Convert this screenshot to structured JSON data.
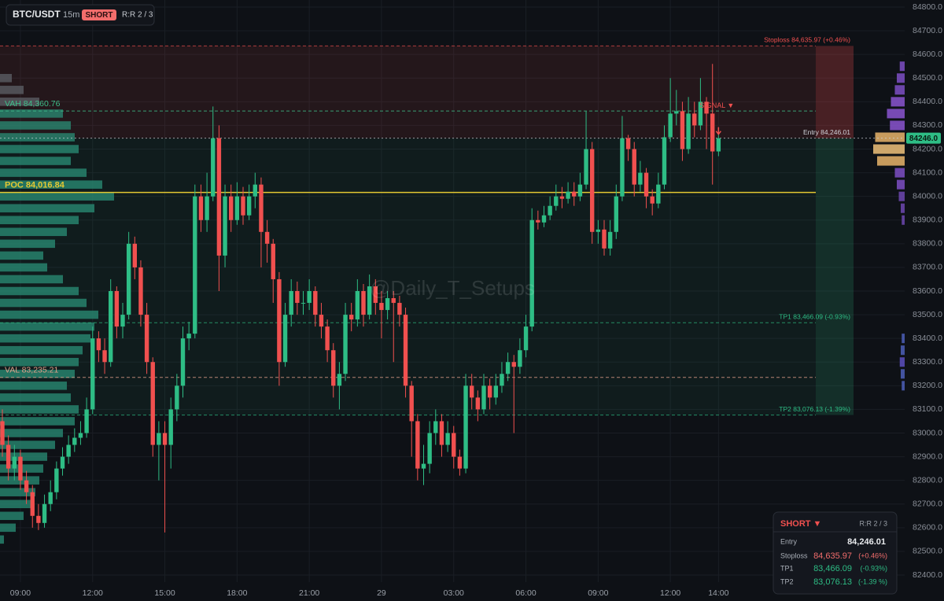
{
  "header": {
    "symbol": "BTC/USDT",
    "interval": "15m",
    "side": "SHORT",
    "rr": "R:R 2 / 3"
  },
  "chart_data": {
    "type": "candlestick",
    "categories": [
      null,
      null,
      null,
      "09:00",
      null,
      null,
      null,
      null,
      null,
      null,
      null,
      null,
      null,
      null,
      null,
      "12:00",
      null,
      null,
      null,
      null,
      null,
      null,
      null,
      null,
      null,
      null,
      null,
      "15:00",
      null,
      null,
      null,
      null,
      null,
      null,
      null,
      null,
      null,
      null,
      null,
      "18:00",
      null,
      null,
      null,
      null,
      null,
      null,
      null,
      null,
      null,
      null,
      null,
      "21:00",
      null,
      null,
      null,
      null,
      null,
      null,
      null,
      null,
      null,
      null,
      null,
      "29",
      null,
      null,
      null,
      null,
      null,
      null,
      null,
      null,
      null,
      null,
      null,
      "03:00",
      null,
      null,
      null,
      null,
      null,
      null,
      null,
      null,
      null,
      null,
      null,
      "06:00",
      null,
      null,
      null,
      null,
      null,
      null,
      null,
      null,
      null,
      null,
      null,
      "09:00",
      null,
      null,
      null,
      null,
      null,
      null,
      null,
      null,
      null,
      null,
      null,
      "12:00",
      null,
      null,
      null,
      null,
      null,
      null,
      null,
      "14:00"
    ],
    "open": [
      83050,
      82950,
      82850,
      82900,
      82800,
      82750,
      82650,
      82620,
      82700,
      82750,
      82850,
      82900,
      82950,
      82980,
      83000,
      83100,
      83400,
      83350,
      83300,
      83600,
      83450,
      83500,
      83800,
      83700,
      83500,
      83300,
      82950,
      83000,
      82950,
      83100,
      83200,
      83400,
      83420,
      84000,
      83900,
      84000,
      84246,
      83750,
      84000,
      83900,
      84000,
      83920,
      84000,
      84050,
      83850,
      83800,
      83650,
      83300,
      83500,
      83600,
      83550,
      83550,
      83600,
      83500,
      83450,
      83350,
      83200,
      83250,
      83500,
      83480,
      83600,
      83500,
      83620,
      83550,
      83520,
      83570,
      83550,
      83500,
      83200,
      83050,
      82850,
      82870,
      83000,
      83050,
      82950,
      83000,
      82900,
      82850,
      83200,
      83150,
      83100,
      83200,
      83150,
      83200,
      83250,
      83300,
      83280,
      83350,
      83450,
      83900,
      83890,
      83920,
      83960,
      84000,
      83990,
      84020,
      84000,
      84050,
      84200,
      83850,
      83860,
      83780,
      83850,
      84000,
      84246,
      84200,
      84050,
      84100,
      84000,
      83970,
      84050,
      84250,
      84350,
      84360,
      84200,
      84350,
      84300,
      84400,
      84350,
      84190
    ],
    "high": [
      83100,
      82990,
      82950,
      82930,
      82840,
      82780,
      82700,
      82740,
      82800,
      82880,
      82940,
      82990,
      83020,
      83050,
      83150,
      83450,
      83430,
      83400,
      83650,
      83620,
      83550,
      83850,
      83830,
      83730,
      83550,
      83320,
      83050,
      83050,
      83150,
      83250,
      83450,
      83470,
      84050,
      84050,
      84100,
      84380,
      84300,
      84050,
      84050,
      84060,
      84040,
      84050,
      84100,
      84080,
      83900,
      83820,
      83680,
      83550,
      83650,
      83640,
      83600,
      83650,
      83620,
      83550,
      83480,
      83380,
      83300,
      83550,
      83550,
      83650,
      83630,
      83670,
      83650,
      83600,
      83600,
      83600,
      83580,
      83530,
      83220,
      83080,
      82950,
      83050,
      83100,
      83080,
      83050,
      83030,
      82930,
      83250,
      83250,
      83180,
      83250,
      83230,
      83250,
      83300,
      83340,
      83330,
      83400,
      83500,
      83950,
      83940,
      83960,
      84000,
      84050,
      84040,
      84060,
      84060,
      84100,
      84360,
      84230,
      83900,
      83900,
      83900,
      84050,
      84340,
      84260,
      84230,
      84150,
      84120,
      84030,
      84100,
      84300,
      84500,
      84450,
      84400,
      84420,
      84400,
      84500,
      84420,
      84560,
      84290
    ],
    "low": [
      82900,
      82800,
      82800,
      82760,
      82700,
      82600,
      82590,
      82600,
      82670,
      82720,
      82820,
      82870,
      82920,
      82950,
      82980,
      83080,
      83300,
      83250,
      83280,
      83400,
      83400,
      83480,
      83650,
      83450,
      83250,
      82900,
      82800,
      82580,
      82850,
      83050,
      83150,
      83350,
      83400,
      83850,
      83850,
      83980,
      83600,
      83700,
      83850,
      83880,
      83880,
      83900,
      83950,
      83700,
      83720,
      83550,
      83200,
      83280,
      83450,
      83500,
      83500,
      83520,
      83450,
      83400,
      83300,
      83150,
      83100,
      83220,
      83430,
      83450,
      83450,
      83480,
      83500,
      83400,
      83480,
      83300,
      83450,
      83150,
      82900,
      82800,
      82780,
      82830,
      82950,
      82900,
      82920,
      82850,
      82820,
      82830,
      83100,
      83050,
      83080,
      83100,
      83120,
      83170,
      83220,
      83000,
      83250,
      83320,
      83430,
      83860,
      83870,
      83900,
      83940,
      83950,
      83970,
      83960,
      83980,
      84030,
      83800,
      83800,
      83750,
      83750,
      83820,
      83980,
      84150,
      84000,
      84020,
      83950,
      83920,
      83950,
      84030,
      84230,
      84300,
      84150,
      84180,
      84250,
      84280,
      84200,
      84050,
      84170
    ],
    "close": [
      82950,
      82850,
      82900,
      82800,
      82750,
      82650,
      82620,
      82700,
      82750,
      82850,
      82900,
      82950,
      82980,
      83000,
      83100,
      83400,
      83350,
      83300,
      83600,
      83450,
      83500,
      83800,
      83700,
      83500,
      83300,
      82950,
      83000,
      82950,
      83100,
      83200,
      83400,
      83420,
      84000,
      83900,
      84000,
      84246,
      83750,
      84000,
      83900,
      84000,
      83920,
      84000,
      84050,
      83850,
      83800,
      83650,
      83300,
      83500,
      83600,
      83550,
      83550,
      83600,
      83500,
      83450,
      83350,
      83200,
      83250,
      83500,
      83480,
      83600,
      83500,
      83620,
      83550,
      83520,
      83570,
      83550,
      83500,
      83200,
      83050,
      82850,
      82870,
      83000,
      83050,
      82950,
      83000,
      82900,
      82850,
      83200,
      83150,
      83100,
      83200,
      83150,
      83200,
      83250,
      83300,
      83280,
      83350,
      83450,
      83900,
      83890,
      83920,
      83960,
      84000,
      83990,
      84020,
      84000,
      84050,
      84200,
      83850,
      83860,
      83780,
      83850,
      84000,
      84246,
      84200,
      84050,
      84100,
      84000,
      83970,
      84050,
      84250,
      84350,
      84360,
      84200,
      84350,
      84300,
      84400,
      84350,
      84190,
      84246
    ],
    "up_color": "#2ebd85",
    "down_color": "#f0504f",
    "ylim": [
      82370,
      84830
    ],
    "yticks": [
      {
        "value": 82400,
        "label": "82400.0"
      },
      {
        "value": 82500,
        "label": "82500.0"
      },
      {
        "value": 82600,
        "label": "82600.0"
      },
      {
        "value": 82700,
        "label": "82700.0"
      },
      {
        "value": 82800,
        "label": "82800.0"
      },
      {
        "value": 82900,
        "label": "82900.0"
      },
      {
        "value": 83000,
        "label": "83000.0"
      },
      {
        "value": 83100,
        "label": "83100.0"
      },
      {
        "value": 83200,
        "label": "83200.0"
      },
      {
        "value": 83300,
        "label": "83300.0"
      },
      {
        "value": 83400,
        "label": "83400.0"
      },
      {
        "value": 83500,
        "label": "83500.0"
      },
      {
        "value": 83600,
        "label": "83600.0"
      },
      {
        "value": 83700,
        "label": "83700.0"
      },
      {
        "value": 83800,
        "label": "83800.0"
      },
      {
        "value": 83900,
        "label": "83900.0"
      },
      {
        "value": 84000,
        "label": "84000.0"
      },
      {
        "value": 84100,
        "label": "84100.0"
      },
      {
        "value": 84200,
        "label": "84200.0"
      },
      {
        "value": 84300,
        "label": "84300.0"
      },
      {
        "value": 84400,
        "label": "84400.0"
      },
      {
        "value": 84500,
        "label": "84500.0"
      },
      {
        "value": 84600,
        "label": "84600.0"
      },
      {
        "value": 84700,
        "label": "84700.0"
      },
      {
        "value": 84800,
        "label": "84800.0"
      }
    ],
    "grid": true,
    "levels": [
      {
        "value": 84635.97,
        "label": "Stoploss 84,635.97 (+0.46%)",
        "color": "#f0504f"
      },
      {
        "value": 84246.01,
        "label": "Entry 84,246.01",
        "color": "#d0d3da"
      },
      {
        "value": 83466.09,
        "label": "TP1 83,466.09 (-0.93%)",
        "color": "#2ebd85"
      },
      {
        "value": 83076.13,
        "label": "TP2 83,076.13 (-1.39%)",
        "color": "#2ebd85"
      }
    ],
    "value_area": [
      {
        "value": 84360.76,
        "label": "VAH  84,360.76",
        "color": "#3fbf8a"
      },
      {
        "value": 84016.84,
        "label": "POC  84,016.84",
        "color": "#e3c832"
      },
      {
        "value": 83235.21,
        "label": "VAL  83,235.21",
        "color": "#e0a08a"
      }
    ],
    "volume_profile": {
      "color": "#2a8f77",
      "prices": [
        82550,
        82600,
        82650,
        82700,
        82750,
        82800,
        82850,
        82900,
        82950,
        83000,
        83050,
        83100,
        83150,
        83200,
        83250,
        83300,
        83350,
        83400,
        83450,
        83500,
        83550,
        83600,
        83650,
        83700,
        83750,
        83800,
        83850,
        83900,
        83950,
        84000,
        84050,
        84100,
        84150,
        84200,
        84250,
        84300,
        84350,
        84400,
        84450,
        84500
      ],
      "volumes": [
        5,
        20,
        30,
        40,
        45,
        50,
        55,
        60,
        70,
        80,
        95,
        100,
        90,
        85,
        95,
        100,
        105,
        115,
        120,
        125,
        110,
        100,
        80,
        60,
        55,
        70,
        85,
        100,
        120,
        145,
        130,
        110,
        90,
        100,
        95,
        90,
        80,
        50,
        30,
        15
      ]
    },
    "session_profile": {
      "prices": [
        84550,
        84500,
        84450,
        84400,
        84350,
        84300,
        84250,
        84200,
        84150,
        84100,
        84050,
        84000,
        83950,
        83900,
        83400,
        83350,
        83300,
        83250,
        83200
      ],
      "volumes": [
        5,
        8,
        10,
        14,
        18,
        15,
        30,
        32,
        28,
        10,
        8,
        6,
        4,
        3,
        3,
        4,
        5,
        4,
        3
      ],
      "colors": [
        "#7d4fc4",
        "#7d4fc4",
        "#7d4fc4",
        "#8a55d0",
        "#8a55d0",
        "#8a55d0",
        "#e8b46a",
        "#f0c27a",
        "#e8b46a",
        "#7d4fc4",
        "#7d4fc4",
        "#6d48b0",
        "#6d48b0",
        "#6d48b0",
        "#4c5fb8",
        "#4c5fb8",
        "#5a4fc0",
        "#4c5fb8",
        "#4c5fb8"
      ]
    },
    "last_price": {
      "value": 84246.0,
      "label": "84246.0"
    },
    "signal": "SIGNAL ▼",
    "watermark": "@Daily_T_Setups"
  },
  "panel": {
    "side": "SHORT ▼",
    "rr": "R:R 2 / 3",
    "rows": [
      [
        "Entry",
        "84,246.01"
      ],
      [
        "Stoploss",
        "84,635.97",
        "(+0.46%)"
      ],
      [
        "TP1",
        "83,466.09",
        "(-0.93%)"
      ],
      [
        "TP2",
        "83,076.13",
        "(-1.39 %)"
      ]
    ]
  }
}
